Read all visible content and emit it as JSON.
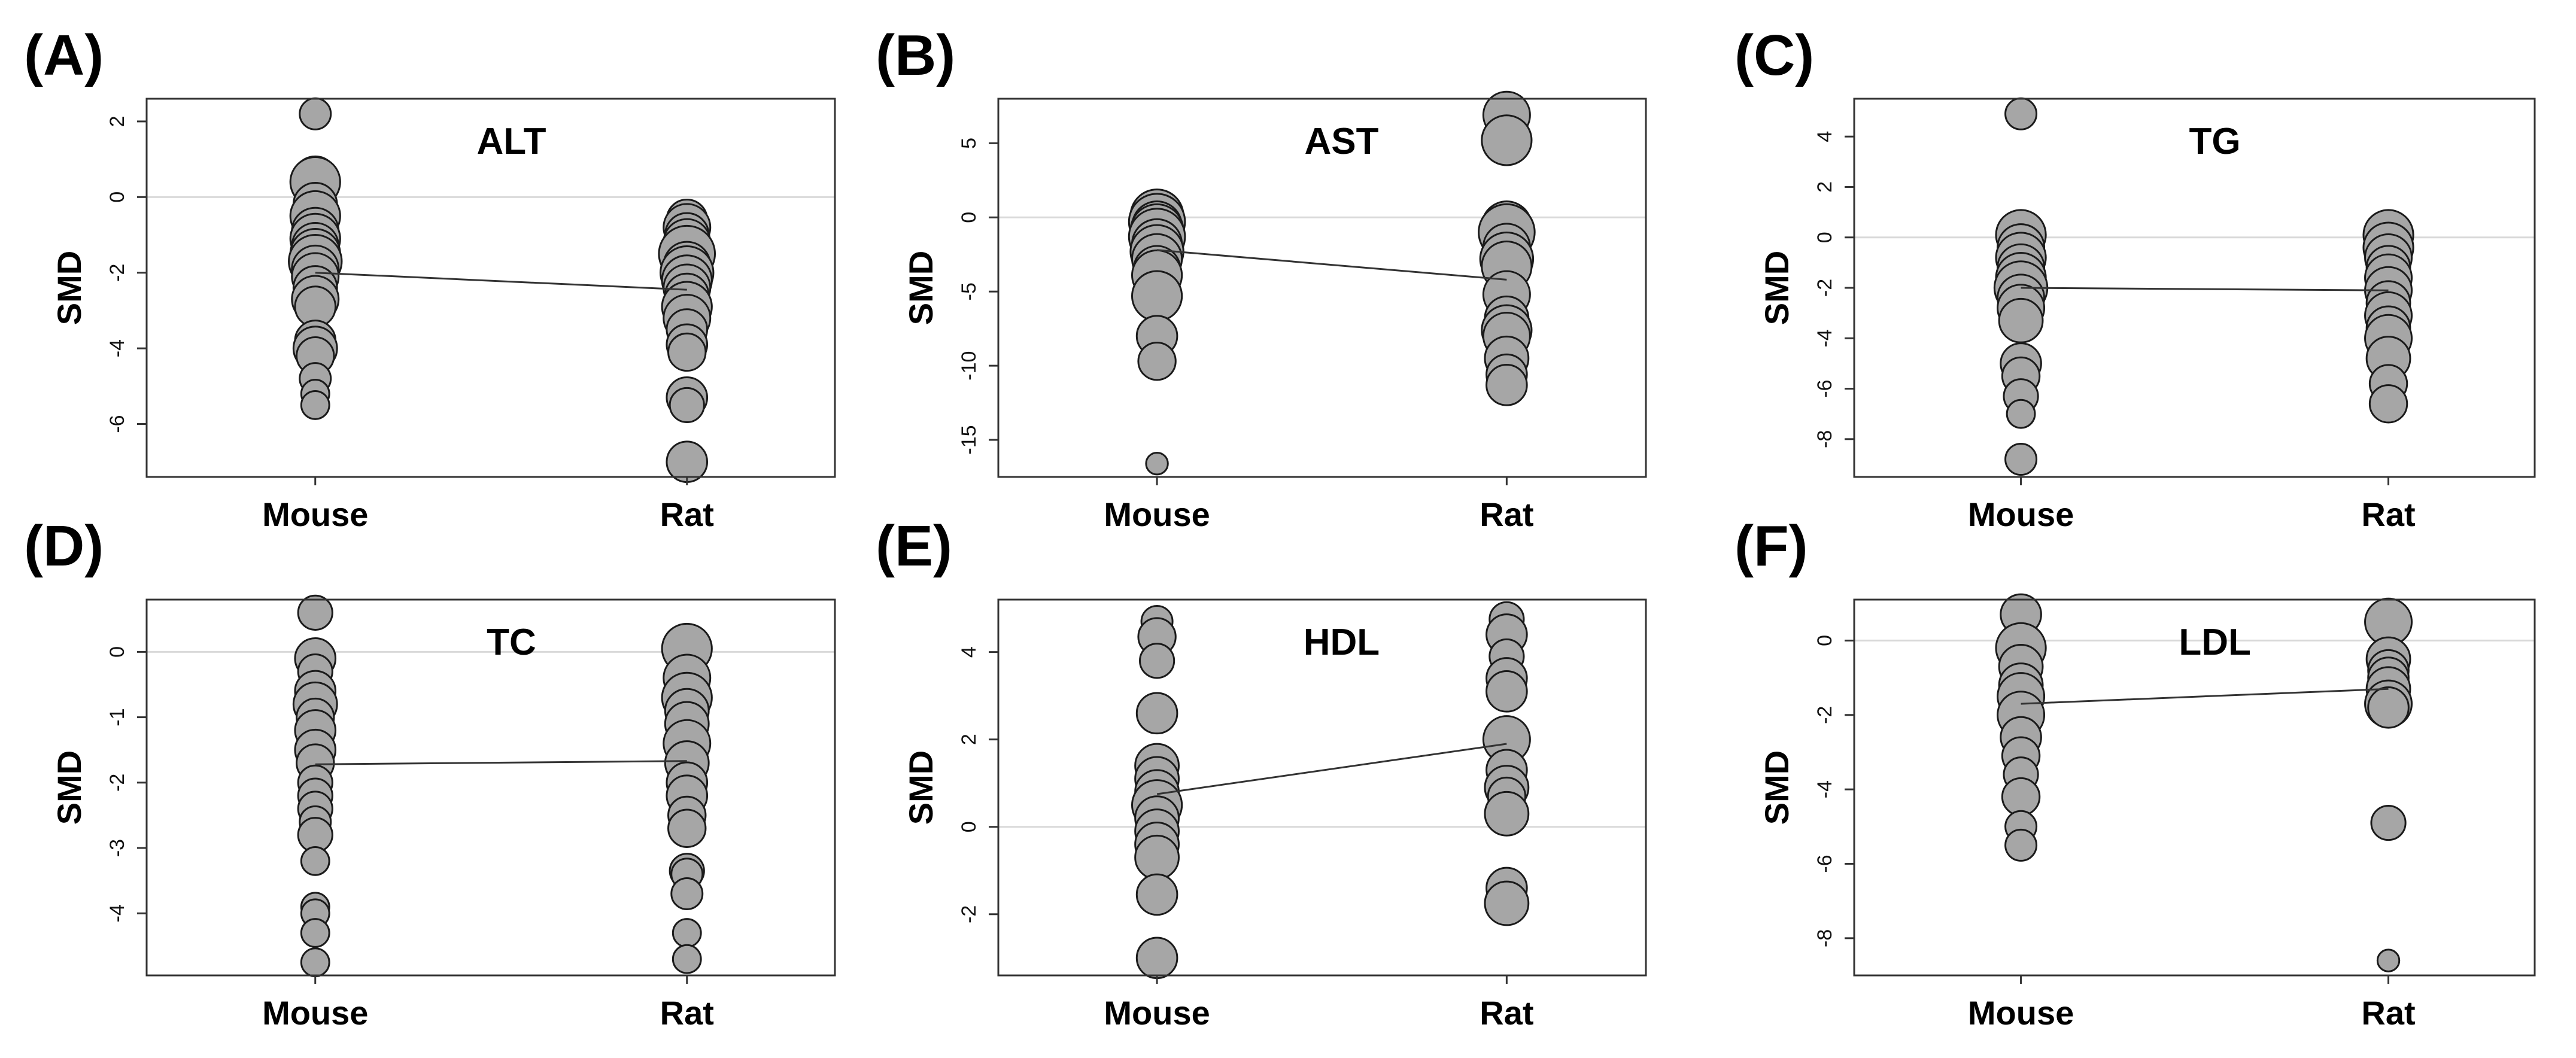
{
  "colors": {
    "point_fill": "#a6a6a6",
    "point_stroke": "#1a1a1a",
    "trend_line": "#333333",
    "zero_line": "#d9d9d9",
    "frame": "#333333"
  },
  "chart_data": [
    {
      "panel": "(A)",
      "type": "scatter",
      "title": "ALT",
      "ylabel": "SMD",
      "categories": [
        "Mouse",
        "Rat"
      ],
      "ylim": [
        -7.4,
        2.6
      ],
      "yticks": [
        2,
        0,
        -2,
        -4,
        -6
      ],
      "zero_line": true,
      "grid": false,
      "trend": [
        -2.0,
        -2.45
      ],
      "series": [
        {
          "category": "Mouse",
          "values": [
            2.2,
            0.5,
            0.4,
            -0.2,
            -0.5,
            -0.9,
            -1.1,
            -1.3,
            -1.5,
            -1.7,
            -1.9,
            -2.1,
            -2.4,
            -2.7,
            -2.9,
            -3.8,
            -4.0,
            -4.2,
            -4.8,
            -5.2,
            -5.5
          ],
          "sizes": [
            1.0,
            1.4,
            1.6,
            1.4,
            1.6,
            1.5,
            1.6,
            1.5,
            1.6,
            1.7,
            1.5,
            1.5,
            1.4,
            1.5,
            1.3,
            1.3,
            1.4,
            1.2,
            1.0,
            0.9,
            0.9
          ]
        },
        {
          "category": "Rat",
          "values": [
            -0.6,
            -0.8,
            -1.0,
            -1.2,
            -1.5,
            -1.8,
            -2.0,
            -2.2,
            -2.4,
            -2.6,
            -2.9,
            -3.2,
            -3.5,
            -3.9,
            -4.1,
            -5.3,
            -5.5,
            -7.0
          ],
          "sizes": [
            1.3,
            1.5,
            1.4,
            1.5,
            1.8,
            1.5,
            1.7,
            1.6,
            1.5,
            1.4,
            1.6,
            1.5,
            1.3,
            1.3,
            1.2,
            1.3,
            1.1,
            1.3
          ]
        }
      ]
    },
    {
      "panel": "(B)",
      "type": "scatter",
      "title": "AST",
      "ylabel": "SMD",
      "categories": [
        "Mouse",
        "Rat"
      ],
      "ylim": [
        -17.5,
        8
      ],
      "yticks": [
        5,
        0,
        -5,
        -10,
        -15
      ],
      "zero_line": true,
      "grid": false,
      "trend": [
        -2.2,
        -4.2
      ],
      "series": [
        {
          "category": "Mouse",
          "values": [
            0.1,
            -0.3,
            -0.6,
            -0.9,
            -1.3,
            -1.8,
            -2.3,
            -2.8,
            -3.5,
            -3.9,
            -5.3,
            -8.0,
            -9.7,
            -16.6
          ],
          "sizes": [
            1.7,
            1.8,
            1.6,
            1.7,
            1.8,
            1.6,
            1.7,
            1.6,
            1.5,
            1.6,
            1.6,
            1.3,
            1.2,
            0.7
          ]
        },
        {
          "category": "Rat",
          "values": [
            6.9,
            5.2,
            -0.6,
            -1.0,
            -2.0,
            -2.8,
            -3.3,
            -5.2,
            -6.8,
            -7.6,
            -8.0,
            -9.5,
            -10.6,
            -11.3
          ],
          "sizes": [
            1.5,
            1.6,
            1.6,
            1.8,
            1.5,
            1.7,
            1.6,
            1.5,
            1.4,
            1.6,
            1.5,
            1.4,
            1.3,
            1.3
          ]
        }
      ]
    },
    {
      "panel": "(C)",
      "type": "scatter",
      "title": "TG",
      "ylabel": "SMD",
      "categories": [
        "Mouse",
        "Rat"
      ],
      "ylim": [
        -9.5,
        5.5
      ],
      "yticks": [
        4,
        2,
        0,
        -2,
        -4,
        -6,
        -8
      ],
      "zero_line": true,
      "grid": false,
      "trend": [
        -2.0,
        -2.1
      ],
      "series": [
        {
          "category": "Mouse",
          "values": [
            4.9,
            0.1,
            -0.4,
            -0.8,
            -1.2,
            -1.6,
            -2.0,
            -2.4,
            -2.8,
            -3.3,
            -5.0,
            -5.5,
            -6.3,
            -7.0,
            -8.8
          ],
          "sizes": [
            1.0,
            1.6,
            1.5,
            1.6,
            1.5,
            1.6,
            1.7,
            1.5,
            1.5,
            1.4,
            1.3,
            1.2,
            1.1,
            0.9,
            1.0
          ]
        },
        {
          "category": "Rat",
          "values": [
            0.1,
            -0.4,
            -0.8,
            -1.2,
            -1.6,
            -2.1,
            -2.6,
            -3.1,
            -3.6,
            -4.0,
            -4.8,
            -5.8,
            -6.6
          ],
          "sizes": [
            1.6,
            1.6,
            1.5,
            1.4,
            1.5,
            1.5,
            1.4,
            1.5,
            1.4,
            1.5,
            1.4,
            1.2,
            1.2
          ]
        }
      ]
    },
    {
      "panel": "(D)",
      "type": "scatter",
      "title": "TC",
      "ylabel": "SMD",
      "categories": [
        "Mouse",
        "Rat"
      ],
      "ylim": [
        -4.95,
        0.8
      ],
      "yticks": [
        0,
        -1,
        -2,
        -3,
        -4
      ],
      "zero_line": true,
      "grid": false,
      "trend": [
        -1.72,
        -1.67
      ],
      "series": [
        {
          "category": "Mouse",
          "values": [
            0.6,
            -0.1,
            -0.3,
            -0.6,
            -0.8,
            -1.0,
            -1.2,
            -1.5,
            -1.7,
            -2.0,
            -2.2,
            -2.4,
            -2.6,
            -2.8,
            -3.2,
            -3.9,
            -4.0,
            -4.3,
            -4.75
          ],
          "sizes": [
            1.1,
            1.3,
            1.1,
            1.3,
            1.4,
            1.2,
            1.3,
            1.3,
            1.2,
            1.1,
            1.1,
            1.1,
            1.0,
            1.1,
            0.9,
            0.9,
            0.9,
            0.9,
            0.9
          ]
        },
        {
          "category": "Rat",
          "values": [
            0.05,
            -0.4,
            -0.7,
            -0.9,
            -1.1,
            -1.4,
            -1.7,
            -2.0,
            -2.2,
            -2.5,
            -2.7,
            -3.35,
            -3.4,
            -3.7,
            -4.3,
            -4.7
          ],
          "sizes": [
            1.6,
            1.5,
            1.6,
            1.4,
            1.4,
            1.5,
            1.4,
            1.3,
            1.3,
            1.2,
            1.2,
            1.1,
            1.0,
            1.0,
            0.9,
            0.9
          ]
        }
      ]
    },
    {
      "panel": "(E)",
      "type": "scatter",
      "title": "HDL",
      "ylabel": "SMD",
      "categories": [
        "Mouse",
        "Rat"
      ],
      "ylim": [
        -3.4,
        5.2
      ],
      "yticks": [
        4,
        2,
        0,
        -2
      ],
      "zero_line": true,
      "grid": false,
      "trend": [
        0.75,
        1.9
      ],
      "series": [
        {
          "category": "Mouse",
          "values": [
            4.7,
            4.35,
            3.8,
            2.6,
            1.4,
            1.1,
            0.8,
            0.5,
            0.2,
            -0.1,
            -0.4,
            -0.7,
            -1.55,
            -3.0
          ],
          "sizes": [
            1.0,
            1.2,
            1.1,
            1.3,
            1.4,
            1.4,
            1.4,
            1.6,
            1.4,
            1.4,
            1.4,
            1.4,
            1.3,
            1.3
          ]
        },
        {
          "category": "Rat",
          "values": [
            4.75,
            4.4,
            3.9,
            3.4,
            3.1,
            2.0,
            1.3,
            0.9,
            0.7,
            0.3,
            -1.4,
            -1.75
          ],
          "sizes": [
            1.1,
            1.3,
            1.1,
            1.3,
            1.3,
            1.5,
            1.3,
            1.4,
            1.2,
            1.4,
            1.3,
            1.4
          ]
        }
      ]
    },
    {
      "panel": "(F)",
      "type": "scatter",
      "title": "LDL",
      "ylabel": "SMD",
      "categories": [
        "Mouse",
        "Rat"
      ],
      "ylim": [
        -9.0,
        1.1
      ],
      "yticks": [
        0,
        -2,
        -4,
        -6,
        -8
      ],
      "zero_line": true,
      "grid": false,
      "trend": [
        -1.7,
        -1.3
      ],
      "series": [
        {
          "category": "Mouse",
          "values": [
            0.7,
            -0.2,
            -0.7,
            -1.2,
            -1.5,
            -2.0,
            -2.6,
            -3.1,
            -3.6,
            -4.2,
            -5.0,
            -5.5
          ],
          "sizes": [
            1.3,
            1.6,
            1.4,
            1.4,
            1.5,
            1.5,
            1.3,
            1.2,
            1.1,
            1.2,
            1.0,
            1.0
          ]
        },
        {
          "category": "Rat",
          "values": [
            0.5,
            -0.5,
            -0.8,
            -1.0,
            -1.3,
            -1.7,
            -1.8,
            -4.9,
            -8.6
          ],
          "sizes": [
            1.5,
            1.4,
            1.3,
            1.3,
            1.4,
            1.5,
            1.3,
            1.1,
            0.7
          ]
        }
      ]
    }
  ]
}
